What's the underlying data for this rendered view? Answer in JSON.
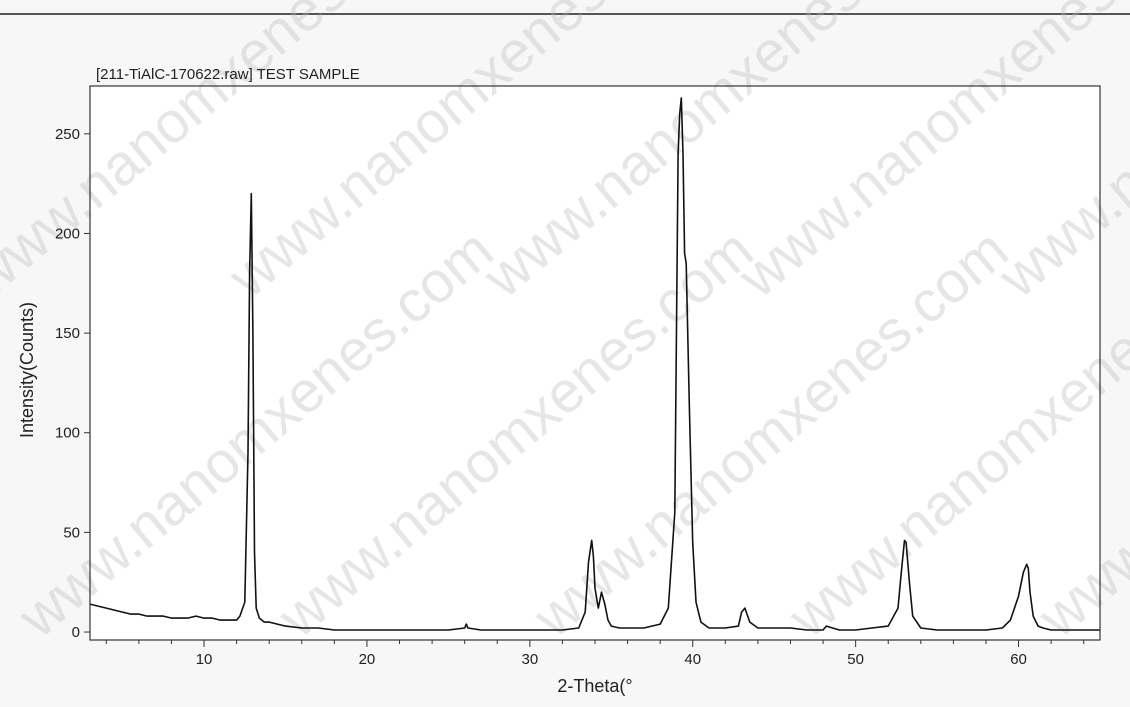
{
  "chart_data": {
    "type": "line",
    "title": "[211-TiAlC-170622.raw] TEST SAMPLE",
    "xlabel": "2-Theta(°",
    "ylabel": "Intensity(Counts)",
    "xlim": [
      3,
      65
    ],
    "ylim": [
      -4,
      274
    ],
    "xticks": [
      10,
      20,
      30,
      40,
      50,
      60
    ],
    "yticks": [
      0,
      50,
      100,
      150,
      200,
      250
    ],
    "grid": false,
    "legend": "none",
    "line_color": "#111111",
    "series": [
      {
        "x": [
          3.0,
          3.5,
          4.0,
          4.5,
          5.0,
          5.5,
          6.0,
          6.5,
          7.0,
          7.5,
          8.0,
          8.5,
          9.0,
          9.5,
          10.0,
          10.5,
          11.0,
          11.5,
          12.0,
          12.2,
          12.5,
          12.7,
          12.8,
          12.9,
          13.0,
          13.1,
          13.2,
          13.4,
          13.7,
          14.0,
          14.5,
          15.0,
          16.0,
          17.0,
          18.0,
          19.0,
          20.0,
          21.0,
          22.0,
          23.0,
          24.0,
          25.0,
          26.0,
          26.1,
          26.2,
          27.0,
          28.0,
          29.0,
          30.0,
          31.0,
          32.0,
          33.0,
          33.4,
          33.6,
          33.8,
          33.9,
          34.0,
          34.2,
          34.4,
          34.6,
          34.8,
          35.0,
          35.5,
          36.0,
          37.0,
          38.0,
          38.5,
          38.9,
          39.1,
          39.2,
          39.3,
          39.4,
          39.5,
          39.6,
          39.8,
          40.0,
          40.2,
          40.5,
          41.0,
          42.0,
          42.8,
          43.0,
          43.2,
          43.5,
          44.0,
          45.0,
          46.0,
          47.0,
          48.0,
          48.2,
          49.0,
          50.0,
          51.0,
          52.0,
          52.6,
          52.8,
          53.0,
          53.1,
          53.3,
          53.5,
          54.0,
          55.0,
          56.0,
          57.0,
          58.0,
          59.0,
          59.5,
          60.0,
          60.3,
          60.5,
          60.6,
          60.7,
          60.9,
          61.2,
          61.5,
          62.0,
          62.5,
          63.0,
          64.0,
          65.0
        ],
        "y": [
          14,
          13,
          12,
          11,
          10,
          9,
          9,
          8,
          8,
          8,
          7,
          7,
          7,
          8,
          7,
          7,
          6,
          6,
          6,
          8,
          15,
          90,
          180,
          220,
          150,
          40,
          12,
          7,
          5,
          5,
          4,
          3,
          2,
          2,
          1,
          1,
          1,
          1,
          1,
          1,
          1,
          1,
          2,
          4,
          2,
          1,
          1,
          1,
          1,
          1,
          1,
          2,
          10,
          35,
          46,
          38,
          22,
          12,
          20,
          14,
          6,
          3,
          2,
          2,
          2,
          4,
          12,
          60,
          240,
          260,
          268,
          240,
          190,
          185,
          110,
          45,
          15,
          5,
          2,
          2,
          3,
          10,
          12,
          5,
          2,
          2,
          2,
          1,
          1,
          3,
          1,
          1,
          2,
          3,
          12,
          30,
          46,
          45,
          25,
          8,
          2,
          1,
          1,
          1,
          1,
          2,
          6,
          18,
          30,
          34,
          32,
          20,
          8,
          3,
          2,
          1,
          1,
          1,
          1,
          1
        ]
      }
    ]
  },
  "watermark": "www.nanomxenes.com",
  "colors": {
    "background": "#f7f7f7",
    "plot_background": "#ffffff",
    "axis": "#333333",
    "watermark": "#b8b8b8"
  }
}
